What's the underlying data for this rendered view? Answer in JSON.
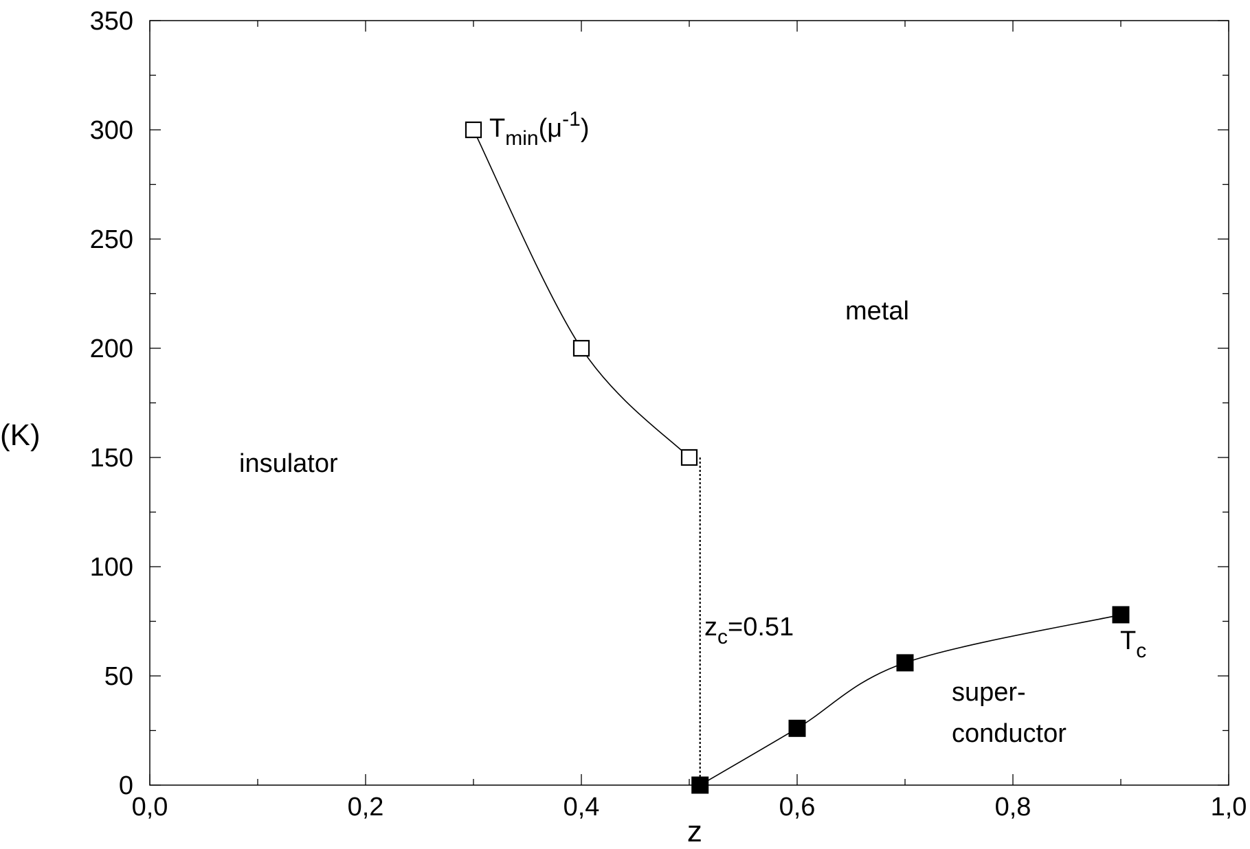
{
  "chart_data": {
    "type": "scatter",
    "xlabel": "z",
    "ylabel": "(K)",
    "xlim": [
      0,
      1
    ],
    "ylim": [
      0,
      350
    ],
    "x_ticks": [
      0,
      0.2,
      0.4,
      0.6,
      0.8,
      1.0
    ],
    "x_tick_labels": [
      "0,0",
      "0,2",
      "0,4",
      "0,6",
      "0,8",
      "1,0"
    ],
    "y_ticks": [
      0,
      50,
      100,
      150,
      200,
      250,
      300,
      350
    ],
    "y_tick_labels": [
      "0",
      "50",
      "100",
      "150",
      "200",
      "250",
      "300",
      "350"
    ],
    "grid": false,
    "series": [
      {
        "name": "T_min(μ^-1)",
        "marker": "open-square",
        "x": [
          0.3,
          0.4,
          0.5
        ],
        "y": [
          300,
          200,
          150
        ]
      },
      {
        "name": "T_c",
        "marker": "filled-square",
        "x": [
          0.51,
          0.6,
          0.7,
          0.9
        ],
        "y": [
          0,
          26,
          56,
          78
        ]
      }
    ],
    "critical_line": {
      "x": 0.51,
      "y_from": 0,
      "y_to": 150,
      "style": "dotted"
    },
    "annotations": {
      "tmin": {
        "base": "T",
        "sub": "min",
        "rest": "(μ",
        "sup": "-1",
        "close": ")"
      },
      "tc": {
        "base": "T",
        "sub": "c"
      },
      "zc": {
        "base": "z",
        "sub": "c",
        "rest": "=0.51"
      },
      "insulator": "insulator",
      "metal": "metal",
      "super_line1": "super-",
      "super_line2": "conductor"
    },
    "colors": {
      "axes": "#000000",
      "background": "#ffffff"
    }
  }
}
